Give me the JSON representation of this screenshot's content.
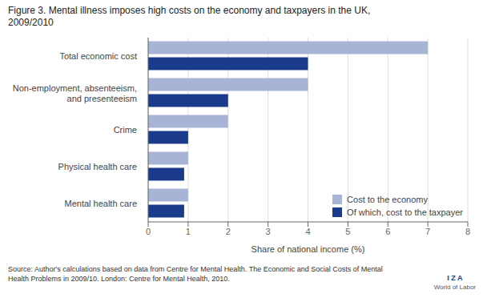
{
  "chart_data": {
    "type": "bar",
    "orientation": "horizontal",
    "title": "Figure 3. Mental illness imposes high costs on the economy and taxpayers in the UK,\n2009/2010",
    "categories": [
      "Mental health care",
      "Physical health care",
      "Crime",
      "Non-employment, absenteeism,\nand presenteeism",
      "Total economic cost"
    ],
    "series": [
      {
        "name": "Cost to the economy",
        "color": "#a8b4d6",
        "values": [
          1.0,
          1.0,
          2.0,
          4.0,
          7.0
        ]
      },
      {
        "name": "Of which, cost to the taxpayer",
        "color": "#1a3a8c",
        "values": [
          0.9,
          0.9,
          1.0,
          2.0,
          4.0
        ]
      }
    ],
    "xlabel": "Share of national income (%)",
    "xlim": [
      0,
      8
    ],
    "xticks": [
      0,
      1,
      2,
      3,
      4,
      5,
      6,
      7,
      8
    ],
    "grid": true,
    "legend": "lower right",
    "annotations": [
      "Source: Author's calculations based on data from Centre for Mental Health. The Economic and Social Costs of Mental\nHealth Problems in 2009/10. London: Centre for Mental Health, 2010.",
      "I Z A",
      "World of Labor"
    ]
  }
}
